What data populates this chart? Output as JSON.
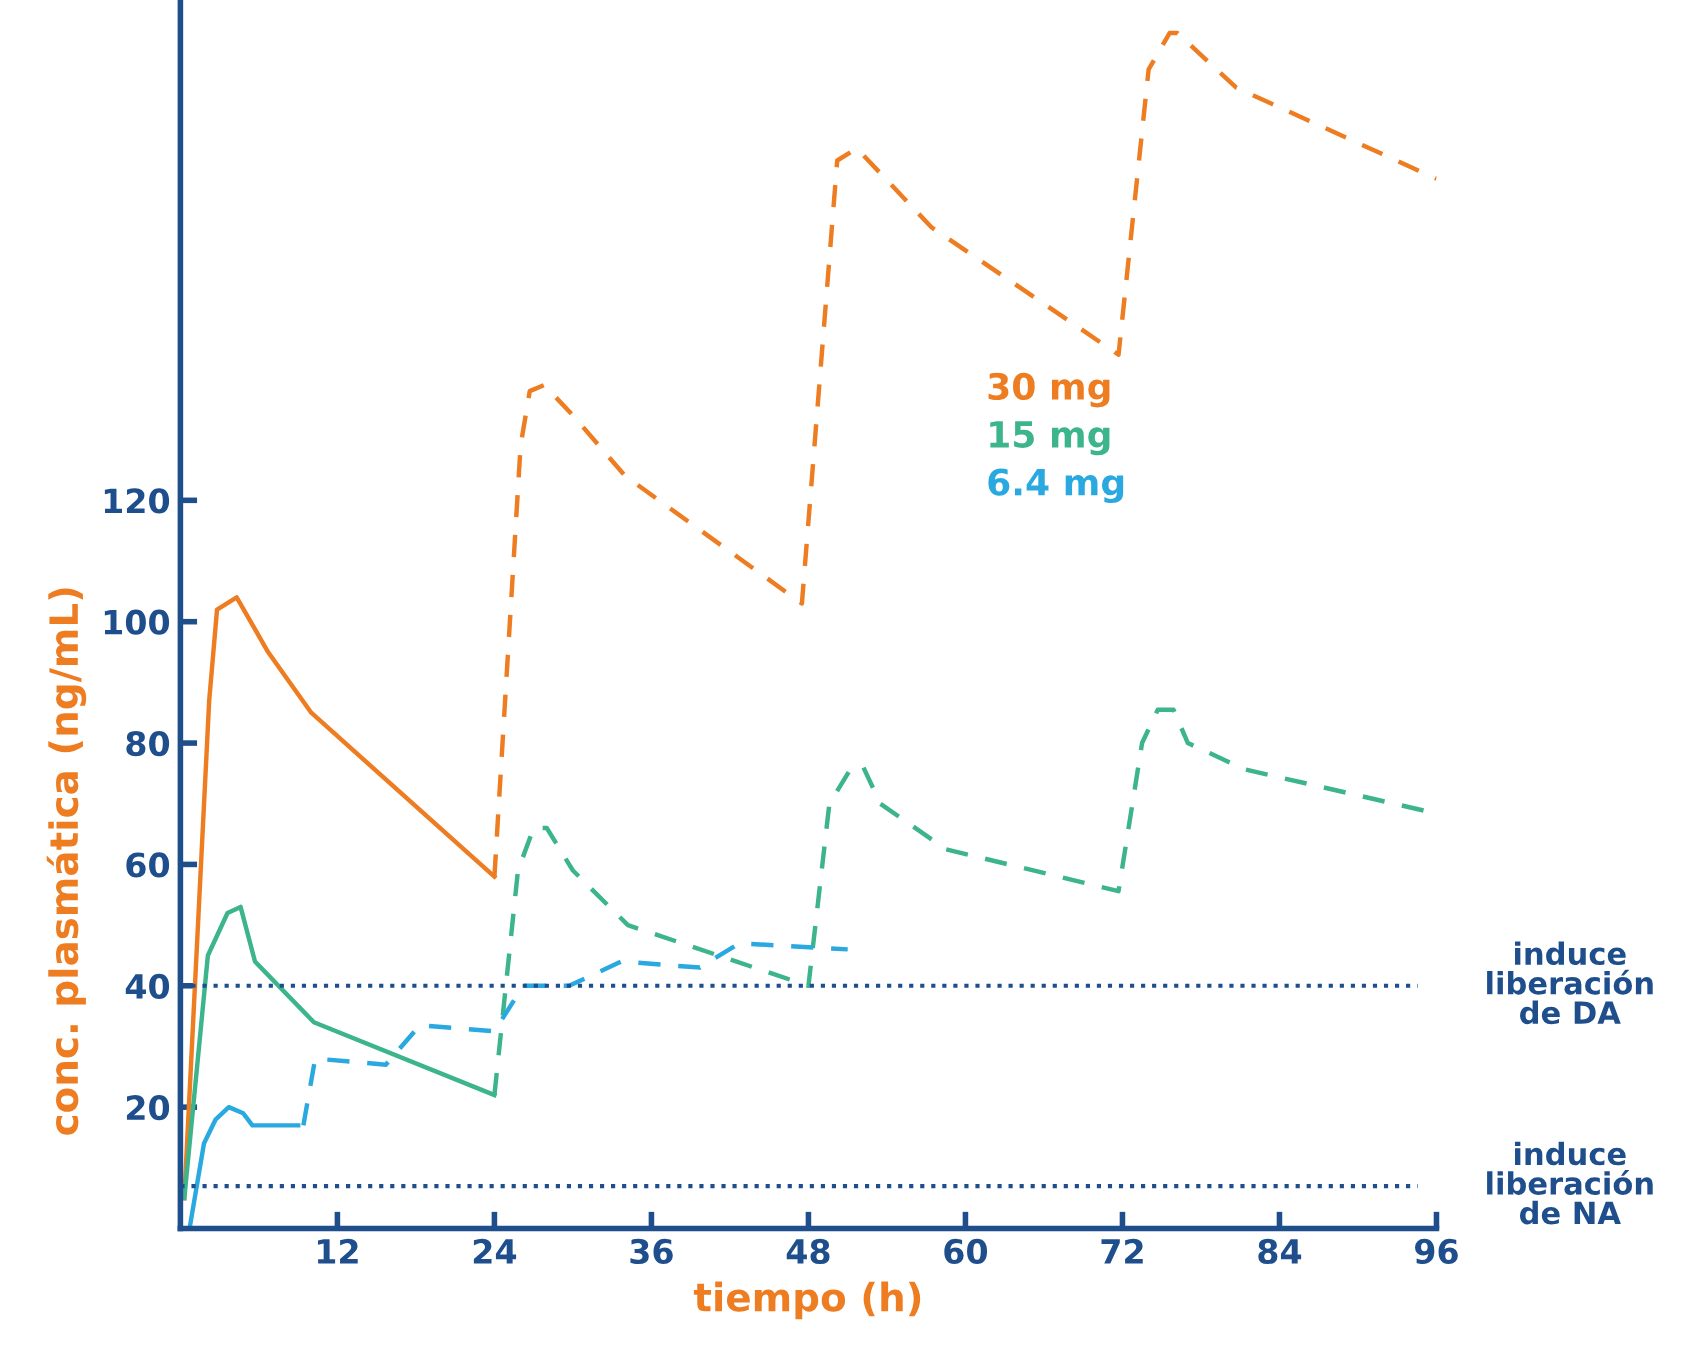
{
  "chart_data": {
    "type": "line",
    "xlabel": "tiempo (h)",
    "ylabel": "conc. plasmática (ng/mL)",
    "xlim": [
      0,
      96
    ],
    "ylim": [
      0,
      202
    ],
    "xticks": [
      12,
      24,
      36,
      48,
      60,
      72,
      84,
      96
    ],
    "yticks": [
      20,
      40,
      60,
      80,
      100,
      120
    ],
    "grid": false,
    "legend": "right",
    "marker": "none",
    "series": [
      {
        "name": "30 mg",
        "color": "#ee7d22",
        "line_style": "solid",
        "x": [
          0.3,
          2.2,
          2.8,
          4.3,
          6.7,
          10,
          24
        ],
        "values": [
          5,
          87,
          102,
          104,
          95,
          85,
          58
        ]
      },
      {
        "name": "15 mg",
        "color": "#3cb48c",
        "line_style": "solid",
        "x": [
          0.3,
          2.1,
          3.6,
          4.6,
          5.7,
          10.2,
          24
        ],
        "values": [
          5,
          45,
          52,
          53,
          44,
          34,
          22
        ]
      },
      {
        "name": "6.4 mg",
        "color": "#29a9e0",
        "line_style": "solid",
        "x": [
          0.7,
          1.8,
          2.7,
          3.7,
          4.8,
          5.5,
          9
        ],
        "values": [
          0,
          14,
          18,
          20,
          19,
          17,
          17
        ]
      },
      {
        "color": "#ee7d22",
        "line_style": "dashed",
        "x": [
          24,
          26,
          26.7,
          27.8,
          30,
          34,
          47.5,
          50.2,
          51.7,
          57.4,
          71.7,
          74,
          75.6,
          76.2,
          80.7,
          96
        ],
        "values": [
          58,
          129,
          138,
          139,
          134,
          124,
          103,
          176,
          178,
          165,
          144,
          191,
          197,
          197,
          188,
          173
        ]
      },
      {
        "color": "#3cb48c",
        "line_style": "dashed",
        "x": [
          24,
          25.8,
          27,
          28,
          30,
          34.2,
          48,
          49.6,
          51.3,
          52.2,
          53.5,
          58.5,
          71.7,
          73.5,
          74.7,
          75.9,
          77,
          81.3,
          96
        ],
        "values": [
          22,
          59,
          66,
          66,
          59,
          50,
          40,
          70,
          76,
          76,
          70,
          62.5,
          55.6,
          80,
          85.5,
          85.5,
          80,
          75.7,
          68.4
        ]
      },
      {
        "color": "#29a9e0",
        "line_style": "dashed",
        "x": [
          9.4,
          10.3,
          15.7,
          18.3,
          24,
          26.2,
          29.7,
          33.7,
          39.7,
          42.7,
          51
        ],
        "values": [
          17,
          28,
          27,
          33.5,
          32.5,
          40,
          40,
          44,
          43,
          47,
          46
        ]
      }
    ],
    "ref_lines": [
      {
        "axis": "y",
        "value": 40,
        "label": "induce\nliberación\nde DA",
        "color": "#1f4e8c",
        "line_style": "dotted"
      },
      {
        "axis": "y",
        "value": 7,
        "label": "induce\nliberación\nde NA",
        "color": "#1f4e8c",
        "line_style": "dotted"
      }
    ]
  }
}
